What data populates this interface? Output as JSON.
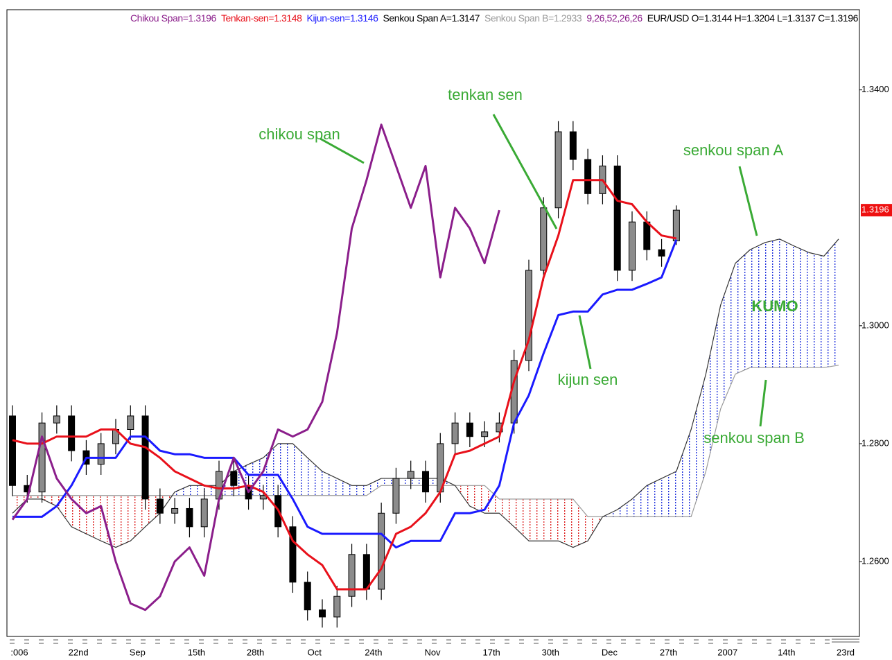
{
  "chart_data": {
    "type": "candlestick",
    "legend": [
      {
        "text": "Chikou Span=1.3196",
        "color": "#8b1e8b"
      },
      {
        "text": "Tenkan-sen=1.3148",
        "color": "#e8101a"
      },
      {
        "text": "Kijun-sen=1.3146",
        "color": "#1a1aff"
      },
      {
        "text": "Senkou Span A=1.3147",
        "color": "#000000"
      },
      {
        "text": "Senkou Span B=1.2933",
        "color": "#9a9a9a"
      },
      {
        "text": "9,26,52,26,26",
        "color": "#8b1e8b"
      },
      {
        "text": "EUR/USD O=1.3144 H=1.3204 L=1.3137 C=1.3196",
        "color": "#000000"
      }
    ],
    "annotations": [
      "chikou span",
      "tenkan sen",
      "senkou span A",
      "KUMO",
      "kijun sen",
      "senkou span B"
    ],
    "categories": [
      ":006",
      null,
      null,
      null,
      "22nd",
      null,
      null,
      null,
      "Sep",
      null,
      null,
      null,
      "15th",
      null,
      null,
      null,
      "28th",
      null,
      null,
      null,
      "Oct",
      null,
      null,
      null,
      "24th",
      null,
      null,
      null,
      "Nov",
      null,
      null,
      null,
      "17th",
      null,
      null,
      null,
      "30th",
      null,
      null,
      null,
      "Dec",
      null,
      null,
      null,
      "27th",
      null,
      null,
      null,
      "2007",
      null,
      null,
      null,
      "14th",
      null,
      null,
      null,
      "23rd"
    ],
    "open": [
      1.2847,
      1.2729,
      1.2718,
      1.2835,
      1.2847,
      1.2788,
      1.2765,
      1.28,
      1.2824,
      1.2847,
      1.2706,
      1.2682,
      1.269,
      1.2659,
      1.2706,
      1.2753,
      1.2729,
      1.2706,
      1.2712,
      1.2659,
      1.2565,
      1.2518,
      1.2506,
      1.2541,
      1.2612,
      1.2553,
      1.2682,
      1.2741,
      1.2753,
      1.2718,
      1.28,
      1.2835,
      1.2812,
      1.282,
      1.2835,
      1.2941,
      1.3094,
      1.32,
      1.3329,
      1.3282,
      1.3224,
      1.3271,
      1.3094,
      1.3176,
      1.3129,
      1.3144,
      null,
      null,
      null,
      null,
      null,
      null,
      null,
      null,
      null,
      null,
      null
    ],
    "high": [
      1.2865,
      1.2747,
      1.2853,
      1.2865,
      1.2865,
      1.2806,
      1.2818,
      1.2842,
      1.2865,
      1.2865,
      1.2724,
      1.2708,
      1.2708,
      1.2724,
      1.2771,
      1.2771,
      1.2747,
      1.273,
      1.273,
      1.2677,
      1.2583,
      1.2536,
      1.2559,
      1.263,
      1.263,
      1.27,
      1.2759,
      1.2771,
      1.2771,
      1.2818,
      1.2853,
      1.2853,
      1.2838,
      1.2853,
      1.2959,
      1.3112,
      1.3218,
      1.3347,
      1.3347,
      1.33,
      1.3289,
      1.3289,
      1.3194,
      1.3194,
      1.3147,
      1.3204,
      null,
      null,
      null,
      null,
      null,
      null,
      null,
      null,
      null,
      null,
      null
    ],
    "low": [
      1.2711,
      1.27,
      1.27,
      1.2817,
      1.277,
      1.2747,
      1.2747,
      1.2782,
      1.2806,
      1.2688,
      1.2664,
      1.2664,
      1.2641,
      1.2641,
      1.2688,
      1.2711,
      1.2688,
      1.2688,
      1.2641,
      1.2547,
      1.25,
      1.2488,
      1.2488,
      1.2523,
      1.2535,
      1.2535,
      1.2664,
      1.2723,
      1.27,
      1.27,
      1.2782,
      1.2794,
      1.2794,
      1.2802,
      1.2817,
      1.2923,
      1.3076,
      1.3182,
      1.3264,
      1.3206,
      1.3206,
      1.3076,
      1.3076,
      1.3111,
      1.31,
      1.3137,
      null,
      null,
      null,
      null,
      null,
      null,
      null,
      null,
      null,
      null,
      null
    ],
    "close": [
      1.2729,
      1.2718,
      1.2835,
      1.2847,
      1.2788,
      1.2765,
      1.28,
      1.2824,
      1.2847,
      1.2706,
      1.2682,
      1.269,
      1.2659,
      1.2706,
      1.2753,
      1.2729,
      1.2706,
      1.2712,
      1.2659,
      1.2565,
      1.2518,
      1.2506,
      1.2541,
      1.2612,
      1.2553,
      1.2682,
      1.2741,
      1.2753,
      1.2718,
      1.28,
      1.2835,
      1.2812,
      1.282,
      1.2835,
      1.2941,
      1.3094,
      1.32,
      1.3329,
      1.3282,
      1.3224,
      1.3271,
      1.3094,
      1.3176,
      1.3129,
      1.3118,
      1.3196,
      null,
      null,
      null,
      null,
      null,
      null,
      null,
      null,
      null,
      null,
      null
    ],
    "up_color": "#8c8c8c",
    "down_color": "#000000",
    "cloud_colors": {
      "up": "#2233dd",
      "down": "#dd2222"
    },
    "series": [
      {
        "color": "#9a9a9a",
        "role": "senkou_b",
        "values": [
          1.2712,
          1.2712,
          1.2712,
          1.2712,
          1.2712,
          1.2712,
          1.2712,
          1.2712,
          1.2712,
          1.2712,
          1.2712,
          1.2712,
          1.2712,
          1.2712,
          1.2712,
          1.2712,
          1.2712,
          1.2712,
          1.2712,
          1.2712,
          1.2712,
          1.2712,
          1.2712,
          1.2712,
          1.2712,
          1.2729,
          1.2729,
          1.2729,
          1.2729,
          1.2729,
          1.2729,
          1.2729,
          1.2729,
          1.2706,
          1.2706,
          1.2706,
          1.2706,
          1.2706,
          1.2706,
          1.2676,
          1.2676,
          1.2676,
          1.2676,
          1.2676,
          1.2676,
          1.2676,
          1.2676,
          1.2753,
          1.2859,
          1.2918,
          1.2929,
          1.2929,
          1.2929,
          1.2929,
          1.2929,
          1.2929,
          1.2933
        ]
      },
      {
        "color": "#333333",
        "role": "senkou_a",
        "values": [
          1.2682,
          1.2706,
          1.2706,
          1.2694,
          1.2659,
          1.2647,
          1.2635,
          1.2624,
          1.2635,
          1.2659,
          1.2682,
          1.2718,
          1.2729,
          1.2729,
          1.2729,
          1.2753,
          1.2765,
          1.2776,
          1.28,
          1.28,
          1.2776,
          1.2753,
          1.2741,
          1.2729,
          1.2729,
          1.2741,
          1.2741,
          1.2741,
          1.2741,
          1.2741,
          1.2729,
          1.2694,
          1.2682,
          1.2682,
          1.2659,
          1.2635,
          1.2635,
          1.2635,
          1.2624,
          1.2635,
          1.2676,
          1.2688,
          1.2706,
          1.2729,
          1.2741,
          1.2753,
          1.2824,
          1.2918,
          1.3035,
          1.3106,
          1.3129,
          1.3141,
          1.3147,
          1.3135,
          1.3124,
          1.3118,
          1.3147
        ]
      },
      {
        "color": "#1a1aff",
        "role": "line",
        "values": [
          1.2676,
          1.2676,
          1.2676,
          1.2694,
          1.2729,
          1.2776,
          1.2776,
          1.2776,
          1.2812,
          1.2812,
          1.2788,
          1.2782,
          1.2782,
          1.2776,
          1.2776,
          1.2776,
          1.2747,
          1.2747,
          1.2747,
          1.2706,
          1.2659,
          1.2647,
          1.2647,
          1.2647,
          1.2647,
          1.2647,
          1.2624,
          1.2635,
          1.2635,
          1.2635,
          1.2682,
          1.2682,
          1.2688,
          1.2729,
          1.2835,
          1.2882,
          1.2953,
          1.3018,
          1.3024,
          1.3024,
          1.3053,
          1.3061,
          1.3061,
          1.3071,
          1.3082,
          1.3146,
          null,
          null,
          null,
          null,
          null,
          null,
          null,
          null,
          null,
          null,
          null
        ]
      },
      {
        "color": "#e8101a",
        "role": "line",
        "values": [
          1.2806,
          1.28,
          1.28,
          1.2812,
          1.2812,
          1.2812,
          1.2824,
          1.2824,
          1.28,
          1.2794,
          1.2776,
          1.2753,
          1.2741,
          1.2729,
          1.2724,
          1.2724,
          1.2729,
          1.2718,
          1.2688,
          1.2635,
          1.2612,
          1.2594,
          1.2553,
          1.2553,
          1.2553,
          1.2588,
          1.2647,
          1.2659,
          1.2682,
          1.2718,
          1.2782,
          1.2788,
          1.28,
          1.2812,
          1.2906,
          1.2976,
          1.3082,
          1.3153,
          1.3247,
          1.3247,
          1.3247,
          1.3212,
          1.3206,
          1.3176,
          1.3153,
          1.3148,
          null,
          null,
          null,
          null,
          null,
          null,
          null,
          null,
          null,
          null,
          null
        ]
      },
      {
        "color": "#8b1e8b",
        "role": "line",
        "values": [
          1.2671,
          1.2706,
          1.2812,
          1.2741,
          1.2706,
          1.2682,
          1.2694,
          1.26,
          1.2529,
          1.2518,
          1.2541,
          1.26,
          1.2624,
          1.2576,
          1.2706,
          1.2776,
          1.2718,
          1.2753,
          1.2824,
          1.2812,
          1.2824,
          1.2871,
          1.2988,
          1.3165,
          1.3247,
          1.3341,
          1.3271,
          1.32,
          1.3271,
          1.3082,
          1.32,
          1.3165,
          1.3106,
          1.3196,
          null,
          null,
          null,
          null,
          null,
          null,
          null,
          null,
          null,
          null,
          null,
          null,
          null,
          null,
          null,
          null,
          null,
          null,
          null,
          null,
          null,
          null,
          null
        ]
      }
    ],
    "ylim": [
      1.2473,
      1.3536
    ],
    "yticks": [
      {
        "value": 1.26,
        "label": "1.2600"
      },
      {
        "value": 1.28,
        "label": "1.2800"
      },
      {
        "value": 1.3,
        "label": "1.3000"
      },
      {
        "value": 1.34,
        "label": "1.3400"
      }
    ],
    "current_price": 1.3196,
    "current_price_color": "#ee1111",
    "grid": false
  }
}
